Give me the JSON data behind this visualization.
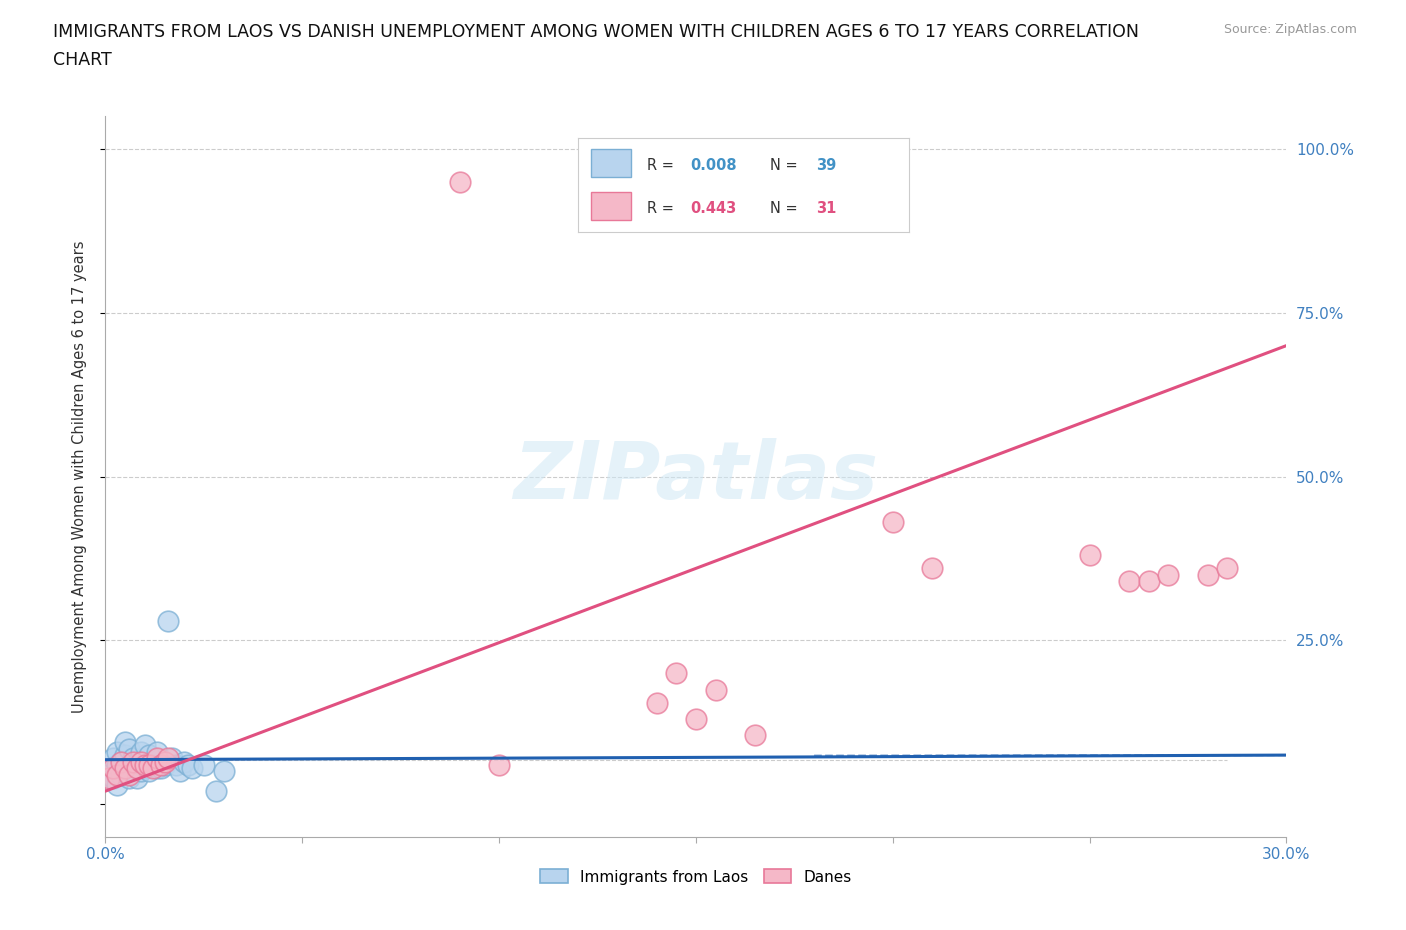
{
  "title_line1": "IMMIGRANTS FROM LAOS VS DANISH UNEMPLOYMENT AMONG WOMEN WITH CHILDREN AGES 6 TO 17 YEARS CORRELATION",
  "title_line2": "CHART",
  "source": "Source: ZipAtlas.com",
  "ylabel": "Unemployment Among Women with Children Ages 6 to 17 years",
  "xlim": [
    0.0,
    0.3
  ],
  "ylim": [
    -0.05,
    1.05
  ],
  "color_blue_face": "#b8d4ee",
  "color_blue_edge": "#7bafd4",
  "color_pink_face": "#f5b8c8",
  "color_pink_edge": "#e87898",
  "color_blue_line": "#2060b0",
  "color_pink_line": "#e05080",
  "color_text_blue": "#4080c0",
  "color_text_pink": "#e05080",
  "color_grid": "#cccccc",
  "color_r_blue": "#4292c6",
  "watermark_color": "#d0e8f5",
  "background_color": "#ffffff",
  "blue_x": [
    0.001,
    0.002,
    0.002,
    0.003,
    0.003,
    0.003,
    0.004,
    0.004,
    0.005,
    0.005,
    0.005,
    0.006,
    0.006,
    0.006,
    0.007,
    0.007,
    0.008,
    0.008,
    0.009,
    0.009,
    0.01,
    0.01,
    0.011,
    0.011,
    0.012,
    0.013,
    0.013,
    0.014,
    0.015,
    0.016,
    0.017,
    0.018,
    0.019,
    0.02,
    0.021,
    0.022,
    0.025,
    0.028,
    0.03
  ],
  "blue_y": [
    0.05,
    0.04,
    0.07,
    0.03,
    0.06,
    0.08,
    0.045,
    0.065,
    0.05,
    0.075,
    0.095,
    0.04,
    0.06,
    0.085,
    0.05,
    0.07,
    0.04,
    0.065,
    0.05,
    0.08,
    0.055,
    0.09,
    0.05,
    0.075,
    0.06,
    0.055,
    0.08,
    0.055,
    0.06,
    0.28,
    0.07,
    0.06,
    0.05,
    0.065,
    0.06,
    0.055,
    0.06,
    0.02,
    0.05
  ],
  "pink_x": [
    0.001,
    0.002,
    0.003,
    0.004,
    0.005,
    0.006,
    0.007,
    0.008,
    0.009,
    0.01,
    0.011,
    0.012,
    0.013,
    0.014,
    0.015,
    0.016,
    0.09,
    0.1,
    0.14,
    0.145,
    0.15,
    0.155,
    0.165,
    0.2,
    0.21,
    0.25,
    0.26,
    0.265,
    0.27,
    0.28,
    0.285
  ],
  "pink_y": [
    0.04,
    0.055,
    0.045,
    0.065,
    0.055,
    0.045,
    0.065,
    0.055,
    0.065,
    0.06,
    0.06,
    0.055,
    0.07,
    0.06,
    0.065,
    0.07,
    0.95,
    0.06,
    0.155,
    0.2,
    0.13,
    0.175,
    0.105,
    0.43,
    0.36,
    0.38,
    0.34,
    0.34,
    0.35,
    0.35,
    0.36
  ],
  "blue_trend_x": [
    0.0,
    0.3
  ],
  "blue_trend_y": [
    0.068,
    0.075
  ],
  "pink_trend_x": [
    0.0,
    0.3
  ],
  "pink_trend_y": [
    0.02,
    0.7
  ]
}
